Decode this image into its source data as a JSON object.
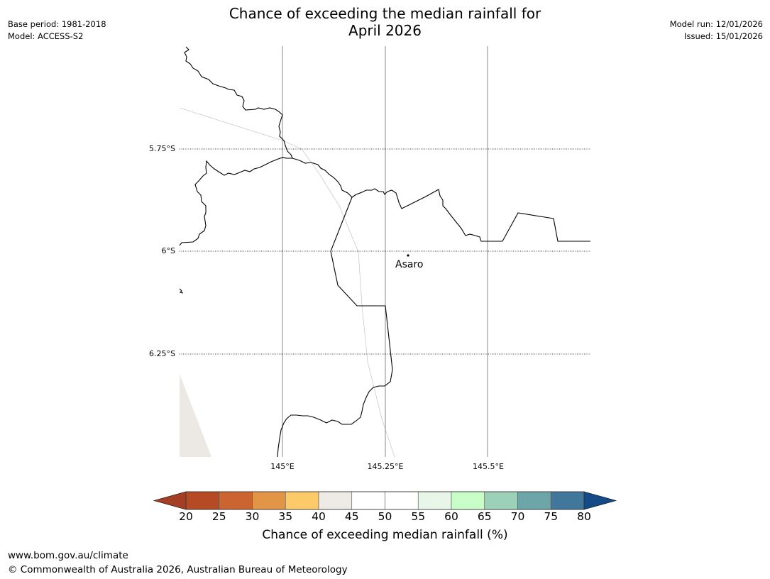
{
  "title": {
    "line1": "Chance of exceeding the median rainfall for",
    "line2": "April 2026"
  },
  "meta_left": {
    "base_period": "Base period: 1981-2018",
    "model": "Model: ACCESS-S2"
  },
  "meta_right": {
    "model_run": "Model run: 12/01/2026",
    "issued": "Issued: 15/01/2026"
  },
  "map": {
    "lat_labels": [
      "5.75°S",
      "6°S",
      "6.25°S"
    ],
    "lon_labels": [
      "145°E",
      "145.25°E",
      "145.5°E"
    ],
    "place": "Asaro"
  },
  "colorbar": {
    "ticks": [
      "20",
      "25",
      "30",
      "35",
      "40",
      "45",
      "50",
      "55",
      "60",
      "65",
      "70",
      "75",
      "80"
    ],
    "colors": [
      "#a33f25",
      "#b54a24",
      "#cc6431",
      "#e29447",
      "#fdca69",
      "#eeebe6",
      "#ffffff",
      "#ffffff",
      "#e8f6e9",
      "#c8fdc8",
      "#9cd0b8",
      "#6ea5a8",
      "#40779b",
      "#144a85"
    ],
    "label": "Chance of exceeding median rainfall (%)"
  },
  "footer": {
    "url": "www.bom.gov.au/climate",
    "copyright": "© Commonwealth of Australia 2026, Australian Bureau of Meteorology"
  }
}
